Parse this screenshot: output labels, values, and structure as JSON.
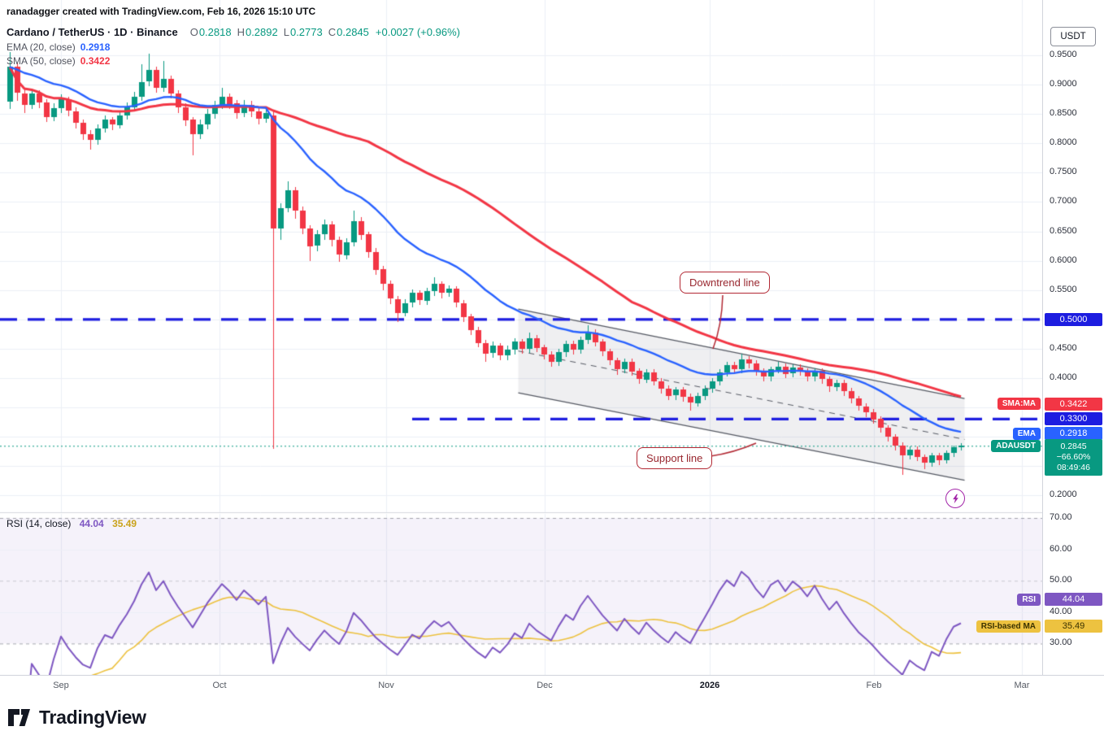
{
  "watermark": "ranadagger created with TradingView.com, Feb 16, 2026 15:10 UTC",
  "legend": {
    "title": "Cardano / TetherUS · 1D · Binance",
    "ohlc": [
      {
        "label": "O",
        "value": "0.2818"
      },
      {
        "label": "H",
        "value": "0.2892"
      },
      {
        "label": "L",
        "value": "0.2773"
      },
      {
        "label": "C",
        "value": "0.2845"
      }
    ],
    "change": "+0.0027 (+0.96%)",
    "ema": {
      "label": "EMA (20, close)",
      "value": "0.2918"
    },
    "sma": {
      "label": "SMA (50, close)",
      "value": "0.3422"
    }
  },
  "rsi_legend": {
    "label": "RSI (14, close)",
    "value": "44.04",
    "ma_value": "35.49"
  },
  "axis": {
    "currency": "USDT"
  },
  "tags": {
    "sma": {
      "tag": "SMA:MA",
      "value": "0.3422",
      "price": 0.3422
    },
    "level_5000": {
      "value": "0.5000",
      "price": 0.5
    },
    "level_3300": {
      "value": "0.3300",
      "price": 0.33
    },
    "ema": {
      "tag": "EMA",
      "value": "0.2918",
      "price": 0.2918
    },
    "last": {
      "tag": "ADAUSDT",
      "value": "0.2845",
      "change_pct": "−66.60%",
      "countdown": "08:49:46",
      "price": 0.2845
    },
    "rsi": {
      "tag": "RSI",
      "value": "44.04",
      "rsi": 44.04
    },
    "rsi_ma": {
      "tag": "RSI-based MA",
      "value": "35.49",
      "rsi": 35.49
    }
  },
  "annotations": [
    {
      "text": "Downtrend line"
    },
    {
      "text": "Support line"
    }
  ],
  "logo_text": "TradingView",
  "colors": {
    "up": "#089981",
    "down": "#f23645",
    "ema": "#2962ff",
    "sma": "#f23645",
    "level": "#1d1de0",
    "channel_line": "#555963",
    "channel_fill": "rgba(130,134,145,0.13)",
    "rsi": "#7e57c2",
    "rsi_ma": "#edc240",
    "annotation": "#b22833",
    "grid": "#eceff6",
    "separator": "#d6d9e0"
  },
  "chart_data": [
    {
      "type": "candlestick",
      "symbol": "ADAUSDT",
      "title": "Cardano / TetherUS · 1D · Binance",
      "timeframe": "1D",
      "exchange": "Binance",
      "ylabel": "USDT",
      "ylim": [
        0.1713,
        1.0443
      ],
      "grid": true,
      "last": {
        "open": 0.2818,
        "high": 0.2892,
        "low": 0.2773,
        "close": 0.2845,
        "change": "+0.0027 (+0.96%)"
      },
      "last_price_line": 0.2845,
      "indicators": [
        {
          "name": "EMA",
          "period": 20,
          "source": "close",
          "last": 0.2918,
          "color_key": "ema"
        },
        {
          "name": "SMA",
          "period": 50,
          "source": "close",
          "last": 0.3422,
          "color_key": "sma"
        }
      ],
      "levels": [
        {
          "price": 0.5,
          "label": "0.5000",
          "from_index": 0
        },
        {
          "price": 0.33,
          "label": "0.3300",
          "from_index": 55
        }
      ],
      "channel": {
        "start_index": 69.5,
        "end_index": 130.5,
        "top_start": 0.5175,
        "top_end": 0.365,
        "bottom_start": 0.3747,
        "bottom_end": 0.226,
        "median_dashed": true
      },
      "y_ticks": [
        {
          "value": 0.95,
          "label": "0.9500"
        },
        {
          "value": 0.9,
          "label": "0.9000"
        },
        {
          "value": 0.85,
          "label": "0.8500"
        },
        {
          "value": 0.8,
          "label": "0.8000"
        },
        {
          "value": 0.75,
          "label": "0.7500"
        },
        {
          "value": 0.7,
          "label": "0.7000"
        },
        {
          "value": 0.65,
          "label": "0.6500"
        },
        {
          "value": 0.6,
          "label": "0.6000"
        },
        {
          "value": 0.55,
          "label": "0.5500"
        },
        {
          "value": 0.45,
          "label": "0.4500"
        },
        {
          "value": 0.4,
          "label": "0.4000"
        },
        {
          "value": 0.2,
          "label": "0.2000"
        }
      ],
      "x_ticks": [
        {
          "label": "Sep",
          "index": 7
        },
        {
          "label": "Oct",
          "index": 28.7
        },
        {
          "label": "Nov",
          "index": 51.4
        },
        {
          "label": "Dec",
          "index": 73.1
        },
        {
          "label": "2026",
          "index": 95.7,
          "strong": true
        },
        {
          "label": "Feb",
          "index": 118.1
        },
        {
          "label": "Mar",
          "index": 138.3
        }
      ],
      "candles": [
        [
          0.87,
          0.955,
          0.858,
          0.93
        ],
        [
          0.93,
          0.938,
          0.872,
          0.885
        ],
        [
          0.885,
          0.895,
          0.852,
          0.865
        ],
        [
          0.865,
          0.893,
          0.858,
          0.885
        ],
        [
          0.885,
          0.89,
          0.86,
          0.87
        ],
        [
          0.87,
          0.875,
          0.836,
          0.845
        ],
        [
          0.845,
          0.868,
          0.838,
          0.86
        ],
        [
          0.86,
          0.884,
          0.852,
          0.875
        ],
        [
          0.875,
          0.88,
          0.846,
          0.855
        ],
        [
          0.855,
          0.861,
          0.826,
          0.835
        ],
        [
          0.835,
          0.841,
          0.806,
          0.815
        ],
        [
          0.815,
          0.822,
          0.79,
          0.805
        ],
        [
          0.805,
          0.832,
          0.798,
          0.825
        ],
        [
          0.825,
          0.848,
          0.818,
          0.84
        ],
        [
          0.84,
          0.845,
          0.822,
          0.832
        ],
        [
          0.832,
          0.855,
          0.825,
          0.848
        ],
        [
          0.848,
          0.87,
          0.84,
          0.862
        ],
        [
          0.862,
          0.888,
          0.855,
          0.88
        ],
        [
          0.88,
          0.935,
          0.872,
          0.905
        ],
        [
          0.905,
          0.953,
          0.898,
          0.925
        ],
        [
          0.925,
          0.93,
          0.886,
          0.895
        ],
        [
          0.895,
          0.94,
          0.888,
          0.91
        ],
        [
          0.91,
          0.916,
          0.876,
          0.885
        ],
        [
          0.885,
          0.89,
          0.852,
          0.862
        ],
        [
          0.862,
          0.868,
          0.83,
          0.84
        ],
        [
          0.84,
          0.845,
          0.78,
          0.815
        ],
        [
          0.815,
          0.84,
          0.808,
          0.832
        ],
        [
          0.832,
          0.858,
          0.824,
          0.85
        ],
        [
          0.85,
          0.872,
          0.842,
          0.865
        ],
        [
          0.865,
          0.895,
          0.858,
          0.88
        ],
        [
          0.88,
          0.885,
          0.858,
          0.868
        ],
        [
          0.868,
          0.874,
          0.842,
          0.852
        ],
        [
          0.852,
          0.874,
          0.845,
          0.866
        ],
        [
          0.866,
          0.872,
          0.845,
          0.855
        ],
        [
          0.855,
          0.86,
          0.832,
          0.842
        ],
        [
          0.842,
          0.86,
          0.835,
          0.852
        ],
        [
          0.848,
          0.856,
          0.28,
          0.655
        ],
        [
          0.655,
          0.698,
          0.635,
          0.69
        ],
        [
          0.69,
          0.735,
          0.682,
          0.72
        ],
        [
          0.72,
          0.726,
          0.672,
          0.685
        ],
        [
          0.685,
          0.692,
          0.645,
          0.655
        ],
        [
          0.655,
          0.66,
          0.6,
          0.625
        ],
        [
          0.625,
          0.652,
          0.616,
          0.645
        ],
        [
          0.645,
          0.67,
          0.636,
          0.662
        ],
        [
          0.662,
          0.668,
          0.625,
          0.635
        ],
        [
          0.635,
          0.641,
          0.598,
          0.61
        ],
        [
          0.61,
          0.638,
          0.602,
          0.632
        ],
        [
          0.632,
          0.685,
          0.624,
          0.668
        ],
        [
          0.668,
          0.674,
          0.636,
          0.645
        ],
        [
          0.645,
          0.65,
          0.605,
          0.615
        ],
        [
          0.615,
          0.621,
          0.576,
          0.585
        ],
        [
          0.585,
          0.591,
          0.55,
          0.56
        ],
        [
          0.56,
          0.566,
          0.526,
          0.535
        ],
        [
          0.535,
          0.54,
          0.495,
          0.512
        ],
        [
          0.512,
          0.534,
          0.505,
          0.528
        ],
        [
          0.528,
          0.551,
          0.52,
          0.545
        ],
        [
          0.545,
          0.55,
          0.524,
          0.532
        ],
        [
          0.532,
          0.554,
          0.525,
          0.548
        ],
        [
          0.548,
          0.572,
          0.54,
          0.56
        ],
        [
          0.56,
          0.565,
          0.536,
          0.545
        ],
        [
          0.545,
          0.558,
          0.538,
          0.552
        ],
        [
          0.552,
          0.557,
          0.52,
          0.528
        ],
        [
          0.528,
          0.533,
          0.496,
          0.505
        ],
        [
          0.505,
          0.51,
          0.474,
          0.482
        ],
        [
          0.482,
          0.487,
          0.452,
          0.46
        ],
        [
          0.46,
          0.465,
          0.428,
          0.442
        ],
        [
          0.442,
          0.462,
          0.435,
          0.455
        ],
        [
          0.455,
          0.46,
          0.43,
          0.438
        ],
        [
          0.438,
          0.455,
          0.43,
          0.448
        ],
        [
          0.448,
          0.468,
          0.44,
          0.462
        ],
        [
          0.462,
          0.467,
          0.442,
          0.45
        ],
        [
          0.45,
          0.478,
          0.443,
          0.468
        ],
        [
          0.468,
          0.473,
          0.444,
          0.452
        ],
        [
          0.452,
          0.457,
          0.432,
          0.44
        ],
        [
          0.44,
          0.445,
          0.42,
          0.428
        ],
        [
          0.428,
          0.45,
          0.421,
          0.444
        ],
        [
          0.444,
          0.464,
          0.436,
          0.458
        ],
        [
          0.458,
          0.463,
          0.44,
          0.448
        ],
        [
          0.448,
          0.47,
          0.441,
          0.465
        ],
        [
          0.465,
          0.49,
          0.458,
          0.478
        ],
        [
          0.478,
          0.483,
          0.454,
          0.462
        ],
        [
          0.462,
          0.467,
          0.437,
          0.445
        ],
        [
          0.445,
          0.45,
          0.422,
          0.43
        ],
        [
          0.43,
          0.435,
          0.406,
          0.415
        ],
        [
          0.415,
          0.433,
          0.408,
          0.428
        ],
        [
          0.428,
          0.433,
          0.404,
          0.412
        ],
        [
          0.412,
          0.417,
          0.39,
          0.398
        ],
        [
          0.398,
          0.415,
          0.391,
          0.41
        ],
        [
          0.41,
          0.415,
          0.387,
          0.395
        ],
        [
          0.395,
          0.4,
          0.374,
          0.382
        ],
        [
          0.382,
          0.387,
          0.362,
          0.37
        ],
        [
          0.37,
          0.385,
          0.363,
          0.38
        ],
        [
          0.38,
          0.385,
          0.36,
          0.368
        ],
        [
          0.368,
          0.373,
          0.345,
          0.358
        ],
        [
          0.358,
          0.375,
          0.351,
          0.37
        ],
        [
          0.37,
          0.387,
          0.363,
          0.382
        ],
        [
          0.382,
          0.4,
          0.375,
          0.395
        ],
        [
          0.395,
          0.415,
          0.388,
          0.41
        ],
        [
          0.41,
          0.427,
          0.403,
          0.422
        ],
        [
          0.422,
          0.427,
          0.407,
          0.415
        ],
        [
          0.415,
          0.442,
          0.408,
          0.432
        ],
        [
          0.432,
          0.437,
          0.417,
          0.425
        ],
        [
          0.425,
          0.43,
          0.404,
          0.412
        ],
        [
          0.412,
          0.417,
          0.394,
          0.402
        ],
        [
          0.402,
          0.42,
          0.395,
          0.415
        ],
        [
          0.415,
          0.428,
          0.408,
          0.42
        ],
        [
          0.42,
          0.425,
          0.4,
          0.408
        ],
        [
          0.408,
          0.423,
          0.401,
          0.418
        ],
        [
          0.418,
          0.423,
          0.404,
          0.412
        ],
        [
          0.412,
          0.417,
          0.394,
          0.402
        ],
        [
          0.402,
          0.417,
          0.395,
          0.412
        ],
        [
          0.412,
          0.417,
          0.39,
          0.398
        ],
        [
          0.398,
          0.403,
          0.377,
          0.385
        ],
        [
          0.385,
          0.397,
          0.378,
          0.392
        ],
        [
          0.392,
          0.397,
          0.37,
          0.378
        ],
        [
          0.378,
          0.383,
          0.357,
          0.365
        ],
        [
          0.365,
          0.37,
          0.344,
          0.352
        ],
        [
          0.352,
          0.357,
          0.334,
          0.342
        ],
        [
          0.342,
          0.347,
          0.322,
          0.33
        ],
        [
          0.33,
          0.335,
          0.307,
          0.315
        ],
        [
          0.315,
          0.32,
          0.292,
          0.3
        ],
        [
          0.3,
          0.305,
          0.277,
          0.285
        ],
        [
          0.285,
          0.29,
          0.235,
          0.268
        ],
        [
          0.268,
          0.283,
          0.261,
          0.278
        ],
        [
          0.278,
          0.283,
          0.258,
          0.265
        ],
        [
          0.265,
          0.27,
          0.245,
          0.255
        ],
        [
          0.255,
          0.272,
          0.249,
          0.268
        ],
        [
          0.268,
          0.273,
          0.252,
          0.26
        ],
        [
          0.26,
          0.276,
          0.254,
          0.272
        ],
        [
          0.272,
          0.285,
          0.266,
          0.2818
        ],
        [
          0.2818,
          0.2892,
          0.2773,
          0.2845
        ]
      ]
    },
    {
      "type": "line",
      "name": "RSI",
      "params": "(14, close)",
      "series": [
        {
          "name": "RSI",
          "period": 14,
          "last": 44.04,
          "color_key": "rsi"
        },
        {
          "name": "RSI-based MA",
          "period": 14,
          "last": 35.49,
          "color_key": "rsi_ma"
        }
      ],
      "bands": {
        "upper": 70,
        "lower": 30,
        "middle": 50
      },
      "ylim": [
        20,
        71.3
      ],
      "y_ticks": [
        {
          "value": 70,
          "label": "70.00"
        },
        {
          "value": 60,
          "label": "60.00"
        },
        {
          "value": 50,
          "label": "50.00"
        },
        {
          "value": 40,
          "label": "40.00"
        },
        {
          "value": 30,
          "label": "30.00"
        }
      ]
    }
  ]
}
